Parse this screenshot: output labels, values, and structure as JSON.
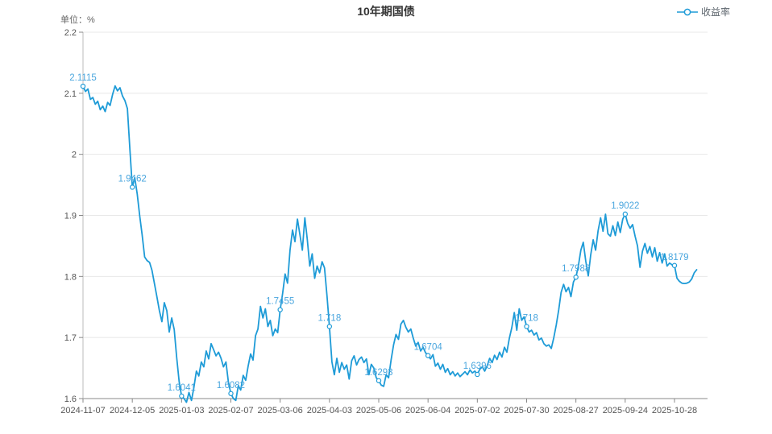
{
  "header": {
    "title": "10年期国债"
  },
  "legend": {
    "series_label": "收益率"
  },
  "axes": {
    "unit_label": "单位：%"
  },
  "colors": {
    "line": "#1e9bd7",
    "point_label": "#4aa6de",
    "title": "#333333",
    "axis_label": "#555555",
    "axis_line": "#888888",
    "gridline": "#e8e8e8",
    "legend_text": "#5c646c",
    "background": "#ffffff"
  },
  "chart_data": {
    "type": "line",
    "title": "10年期国债",
    "series_name": "收益率",
    "ylabel_unit": "单位：%",
    "legend_position": "top-right",
    "grid": true,
    "ylim": [
      1.6,
      2.2
    ],
    "y_ticks": [
      2.2,
      2.1,
      2.0,
      1.9,
      1.8,
      1.7,
      1.6
    ],
    "y_tick_labels": [
      "2.2",
      "2.1",
      "2",
      "1.9",
      "1.8",
      "1.7",
      "1.6"
    ],
    "x_tick_labels": [
      "2024-11-07",
      "2024-12-05",
      "2025-01-03",
      "2025-02-07",
      "2025-03-06",
      "2025-04-03",
      "2025-05-06",
      "2025-06-04",
      "2025-07-02",
      "2025-07-30",
      "2025-08-27",
      "2025-09-24",
      "2025-10-28"
    ],
    "tick_interval_points": 20,
    "labeled_points": [
      {
        "index": 0,
        "label": "2.1115"
      },
      {
        "index": 20,
        "label": "1.9462"
      },
      {
        "index": 40,
        "label": "1.6041"
      },
      {
        "index": 60,
        "label": "1.6082"
      },
      {
        "index": 80,
        "label": "1.7455"
      },
      {
        "index": 100,
        "label": "1.718"
      },
      {
        "index": 120,
        "label": "1.6293"
      },
      {
        "index": 140,
        "label": "1.6704"
      },
      {
        "index": 160,
        "label": "1.6396"
      },
      {
        "index": 180,
        "label": "1.718"
      },
      {
        "index": 200,
        "label": "1.7988"
      },
      {
        "index": 220,
        "label": "1.9022"
      },
      {
        "index": 240,
        "label": "1.8179"
      }
    ],
    "values": [
      2.1115,
      2.103,
      2.107,
      2.09,
      2.093,
      2.082,
      2.087,
      2.073,
      2.079,
      2.07,
      2.085,
      2.08,
      2.098,
      2.112,
      2.104,
      2.109,
      2.096,
      2.088,
      2.075,
      2.01,
      1.9462,
      1.962,
      1.935,
      1.9,
      1.868,
      1.832,
      1.826,
      1.823,
      1.81,
      1.788,
      1.766,
      1.744,
      1.726,
      1.757,
      1.744,
      1.709,
      1.732,
      1.713,
      1.668,
      1.628,
      1.6041,
      1.6,
      1.594,
      1.61,
      1.597,
      1.618,
      1.645,
      1.637,
      1.66,
      1.652,
      1.678,
      1.665,
      1.69,
      1.68,
      1.67,
      1.676,
      1.666,
      1.652,
      1.66,
      1.627,
      1.6082,
      1.6,
      1.597,
      1.621,
      1.614,
      1.638,
      1.63,
      1.653,
      1.673,
      1.663,
      1.703,
      1.714,
      1.751,
      1.732,
      1.747,
      1.718,
      1.728,
      1.703,
      1.714,
      1.708,
      1.7455,
      1.772,
      1.804,
      1.789,
      1.843,
      1.876,
      1.857,
      1.894,
      1.869,
      1.843,
      1.896,
      1.861,
      1.817,
      1.837,
      1.797,
      1.817,
      1.806,
      1.824,
      1.814,
      1.768,
      1.718,
      1.66,
      1.639,
      1.666,
      1.643,
      1.659,
      1.648,
      1.655,
      1.632,
      1.662,
      1.67,
      1.655,
      1.664,
      1.668,
      1.659,
      1.665,
      1.639,
      1.656,
      1.65,
      1.634,
      1.6293,
      1.622,
      1.62,
      1.639,
      1.634,
      1.663,
      1.688,
      1.705,
      1.697,
      1.722,
      1.728,
      1.717,
      1.709,
      1.714,
      1.699,
      1.686,
      1.692,
      1.678,
      1.684,
      1.675,
      1.6704,
      1.665,
      1.672,
      1.653,
      1.658,
      1.648,
      1.656,
      1.643,
      1.649,
      1.639,
      1.644,
      1.637,
      1.642,
      1.636,
      1.64,
      1.644,
      1.639,
      1.647,
      1.642,
      1.645,
      1.6396,
      1.648,
      1.652,
      1.645,
      1.654,
      1.666,
      1.659,
      1.671,
      1.664,
      1.676,
      1.668,
      1.684,
      1.676,
      1.699,
      1.716,
      1.741,
      1.712,
      1.747,
      1.728,
      1.734,
      1.718,
      1.709,
      1.712,
      1.704,
      1.708,
      1.696,
      1.699,
      1.69,
      1.686,
      1.688,
      1.682,
      1.699,
      1.72,
      1.745,
      1.774,
      1.787,
      1.775,
      1.782,
      1.767,
      1.791,
      1.7988,
      1.817,
      1.843,
      1.856,
      1.825,
      1.801,
      1.835,
      1.86,
      1.843,
      1.875,
      1.896,
      1.874,
      1.902,
      1.87,
      1.866,
      1.883,
      1.867,
      1.889,
      1.872,
      1.894,
      1.9022,
      1.887,
      1.879,
      1.885,
      1.866,
      1.85,
      1.815,
      1.841,
      1.854,
      1.838,
      1.849,
      1.832,
      1.847,
      1.825,
      1.839,
      1.822,
      1.837,
      1.817,
      1.822,
      1.819,
      1.8179,
      1.797,
      1.792,
      1.789,
      1.7885,
      1.789,
      1.791,
      1.796,
      1.806,
      1.811
    ]
  }
}
